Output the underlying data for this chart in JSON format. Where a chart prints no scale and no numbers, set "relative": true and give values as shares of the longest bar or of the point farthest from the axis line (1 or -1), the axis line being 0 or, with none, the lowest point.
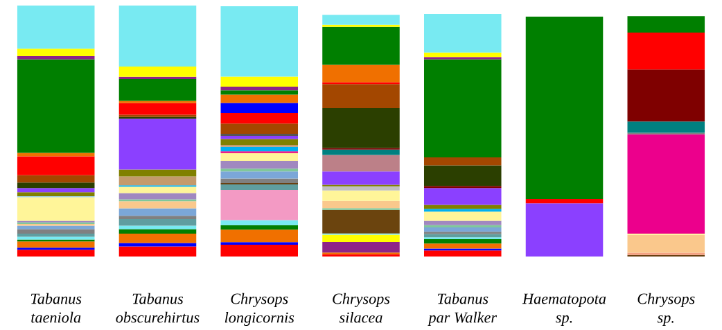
{
  "chart_data": {
    "type": "bar",
    "stacked": true,
    "relative": true,
    "legend": false,
    "categories": [
      "Tabanus\ntaeniola",
      "Tabanus\nobscurehirtus",
      "Chrysops\nlongicornis",
      "Chrysops\nsilacea",
      "Tabanus\npar Walker",
      "Haematopota\nsp.",
      "Chrysops\nsp."
    ],
    "series": [
      {
        "values": [
          0.027,
          0.04,
          0.047,
          0.009,
          0.024,
          0.212,
          0.006
        ],
        "colors": [
          "#ff0000",
          "#ff0000",
          "#ff0000",
          "#ff0000",
          "#ff0000",
          "#8b40ff",
          "#6a4010"
        ]
      },
      {
        "values": [
          0.008,
          0.014,
          0.01,
          0.007,
          0.008,
          0.017,
          0.009
        ],
        "colors": [
          "#0000ff",
          "#0000ff",
          "#0000ff",
          "#f07000",
          "#0000ff",
          "#ff0000",
          "#f4a080"
        ]
      },
      {
        "values": [
          0.025,
          0.037,
          0.05,
          0.042,
          0.02,
          0.727,
          0.071
        ],
        "colors": [
          "#f07000",
          "#f07000",
          "#f07000",
          "#8e2488",
          "#f07000",
          "#007f00",
          "#fac88c"
        ]
      },
      {
        "values": [
          0.008,
          0.018,
          0.018,
          0.029,
          0.017,
          null,
          0.005
        ],
        "colors": [
          "#007f00",
          "#007f00",
          "#007f00",
          "#ffff00",
          "#007f00",
          null,
          "#fff599"
        ]
      },
      {
        "values": [
          0.011,
          0.014,
          0.02,
          0.005,
          0.008,
          null,
          0.396
        ],
        "colors": [
          "#78eaf2",
          "#78eaf2",
          "#78eaf2",
          "#78eaf2",
          "#78eaf2",
          null,
          "#ec008c"
        ]
      },
      {
        "values": [
          0.012,
          0.026,
          0.12,
          0.094,
          0.013,
          null,
          0.006
        ],
        "colors": [
          "#5f9ea0",
          "#5f9ea0",
          "#f39ac4",
          "#6b440e",
          "#5f9ea0",
          null,
          "#808080"
        ]
      },
      {
        "values": [
          0.018,
          0.013,
          0.022,
          0.007,
          0.009,
          null,
          0.045
        ],
        "colors": [
          "#808080",
          "#808080",
          "#5f9ea0",
          "#80c89a",
          "#808080",
          null,
          "#008080"
        ]
      },
      {
        "values": [
          0.014,
          0.03,
          0.006,
          0.029,
          0.017,
          null,
          0.207
        ],
        "colors": [
          "#7ba7d8",
          "#7ba7d8",
          "#6a4010",
          "#fac88c",
          "#7ba7d8",
          null,
          "#7f0000"
        ]
      },
      {
        "values": [
          0.007,
          0.028,
          0.018,
          0.041,
          0.009,
          null,
          0.147
        ],
        "colors": [
          "#fac88c",
          "#fac88c",
          "#808080",
          "#fff599",
          "#80c89a",
          null,
          "#ff0000"
        ]
      },
      {
        "values": [
          0.006,
          0.008,
          0.028,
          0.017,
          0.017,
          null,
          0.066
        ],
        "colors": [
          "#80c89a",
          "#80c89a",
          "#7ba7d8",
          "#c0c0c0",
          "#a088c0",
          null,
          "#007f00"
        ]
      },
      {
        "values": [
          0.006,
          0.025,
          0.011,
          0.006,
          0.037,
          null,
          null
        ],
        "colors": [
          "#a088c0",
          "#a088c0",
          "#80c89a",
          "#808000",
          "#fff599",
          null,
          null
        ]
      },
      {
        "values": [
          0.094,
          0.025,
          0.031,
          0.053,
          0.011,
          null,
          null
        ],
        "colors": [
          "#fff599",
          "#fff599",
          "#a088c0",
          "#8b40ff",
          "#00b0f0",
          null,
          null
        ]
      },
      {
        "values": [
          0.004,
          0.006,
          0.031,
          0.066,
          0.016,
          null,
          null
        ],
        "colors": [
          "#a0d0e8",
          "#00b0f0",
          "#fff599",
          "#bc8088",
          "#808000",
          null,
          null
        ]
      },
      {
        "values": [
          0.016,
          0.035,
          0.007,
          0.021,
          0.067,
          null,
          null
        ],
        "colors": [
          "#808000",
          "#c49a6c",
          "#e8007f",
          "#008080",
          "#8b40ff",
          null,
          null
        ]
      },
      {
        "values": [
          0.017,
          0.028,
          0.018,
          0.006,
          0.008,
          null,
          null
        ],
        "colors": [
          "#8b40ff",
          "#808000",
          "#00b0f0",
          "#7f0000",
          "#7f0000",
          null,
          null
        ]
      },
      {
        "values": [
          0.022,
          0.202,
          0.008,
          0.159,
          0.082,
          null,
          null
        ],
        "colors": [
          "#2b3f00",
          "#8b40ff",
          "#c49a6c",
          "#2b3f00",
          "#2b3f00",
          null,
          null
        ]
      },
      {
        "values": [
          0.029,
          0.007,
          0.023,
          0.096,
          0.032,
          null,
          null
        ],
        "colors": [
          "#a34700",
          "#2b3f00",
          "#808000",
          "#a34700",
          "#a34700",
          null,
          null
        ]
      },
      {
        "values": [
          0.075,
          0.009,
          0.013,
          0.007,
          0.391,
          null,
          null
        ],
        "colors": [
          "#ff0000",
          "#a34700",
          "#8b40ff",
          "#ff0000",
          "#007f00",
          null,
          null
        ]
      },
      {
        "values": [
          0.014,
          0.046,
          0.008,
          0.07,
          0.009,
          null,
          null
        ],
        "colors": [
          "#f07000",
          "#ff0000",
          "#555555",
          "#f07000",
          "#8e2488",
          null,
          null
        ]
      },
      {
        "values": [
          0.373,
          0.009,
          0.041,
          0.151,
          0.018,
          null,
          null
        ],
        "colors": [
          "#007f00",
          "#f07000",
          "#a34700",
          "#007f00",
          "#ffff00",
          null,
          null
        ]
      },
      {
        "values": [
          0.012,
          0.087,
          0.042,
          0.008,
          0.154,
          null,
          null
        ],
        "colors": [
          "#8e2488",
          "#007f00",
          "#ff0000",
          "#ffff00",
          "#78eaf2",
          null,
          null
        ]
      },
      {
        "values": [
          0.03,
          0.009,
          0.04,
          0.04,
          null,
          null,
          null
        ],
        "colors": [
          "#ffff00",
          "#8e2488",
          "#0000ff",
          "#78eaf2",
          null,
          null,
          null
        ]
      },
      {
        "values": [
          0.172,
          0.041,
          0.033,
          null,
          null,
          null,
          null
        ],
        "colors": [
          "#78eaf2",
          "#ffff00",
          "#f07000",
          null,
          null,
          null,
          null
        ]
      },
      {
        "values": [
          null,
          0.243,
          0.017,
          null,
          null,
          null,
          null
        ],
        "colors": [
          null,
          "#78eaf2",
          "#007f00",
          null,
          null,
          null,
          null
        ]
      },
      {
        "values": [
          null,
          null,
          0.015,
          null,
          null,
          null,
          null
        ],
        "colors": [
          null,
          null,
          "#8e2488",
          null,
          null,
          null,
          null
        ]
      },
      {
        "values": [
          null,
          null,
          0.04,
          null,
          null,
          null,
          null
        ],
        "colors": [
          null,
          null,
          "#ffff00",
          null,
          null,
          null,
          null
        ]
      },
      {
        "values": [
          null,
          null,
          0.28,
          null,
          null,
          null,
          null
        ],
        "colors": [
          null,
          null,
          "#78eaf2",
          null,
          null,
          null,
          null
        ]
      }
    ]
  }
}
